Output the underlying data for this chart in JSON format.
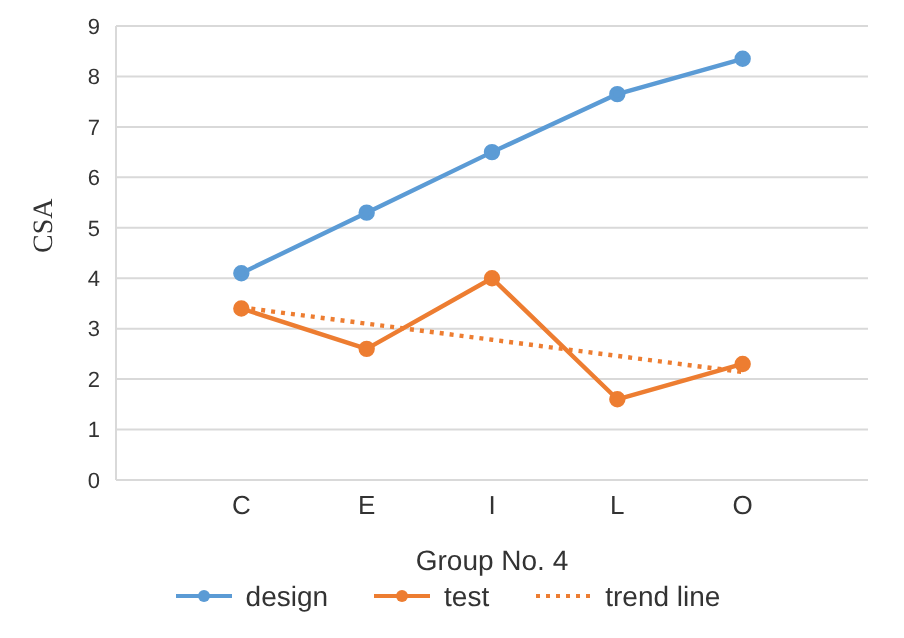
{
  "chart_data": {
    "type": "line",
    "xlabel": "Group No. 4",
    "ylabel": "CSA",
    "categories": [
      null,
      "C",
      "E",
      "I",
      "L",
      "O",
      null
    ],
    "series": [
      {
        "name": "design",
        "color": "#5b9bd5",
        "marker": "circle",
        "line_style": "solid",
        "values": [
          null,
          4.1,
          5.3,
          6.5,
          7.65,
          8.35,
          null
        ]
      },
      {
        "name": "test",
        "color": "#ed7d31",
        "marker": "circle",
        "line_style": "solid",
        "values": [
          null,
          3.4,
          2.6,
          4.0,
          1.6,
          2.3,
          null
        ]
      },
      {
        "name": "trend line",
        "color": "#ed7d31",
        "marker": "none",
        "line_style": "dotted",
        "values": [
          null,
          3.42,
          3.1,
          2.78,
          2.46,
          2.14,
          null
        ]
      }
    ],
    "ylim": [
      0,
      9
    ],
    "yticks": [
      0,
      1,
      2,
      3,
      4,
      5,
      6,
      7,
      8,
      9
    ],
    "grid": "y",
    "legend": "bottom"
  }
}
